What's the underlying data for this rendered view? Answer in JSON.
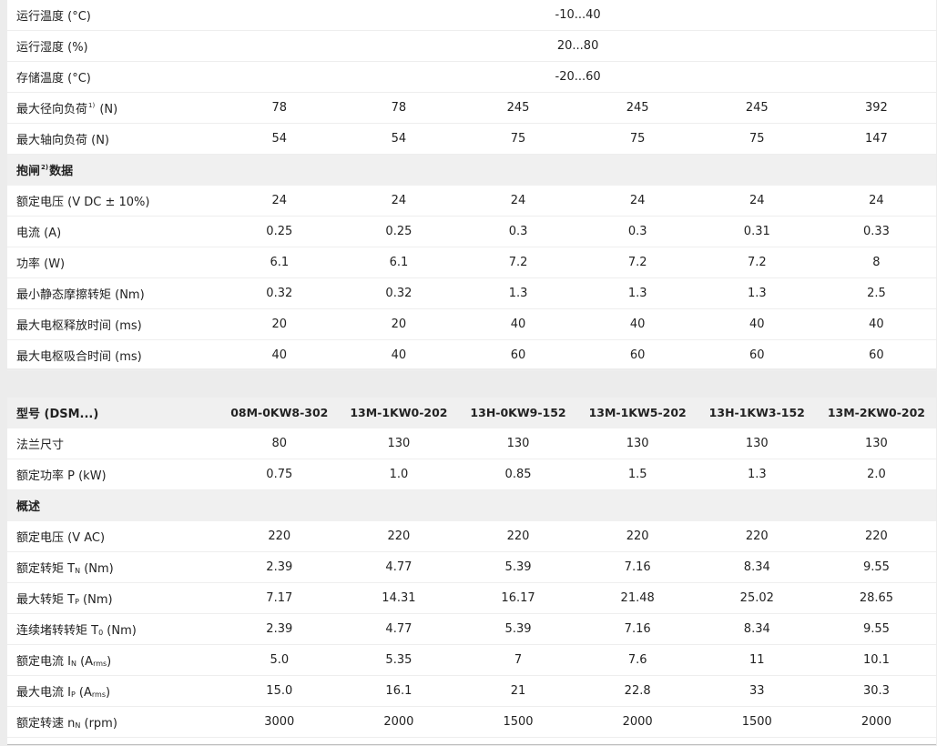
{
  "table1": {
    "env_rows": [
      {
        "label": "运行温度 (°C)",
        "value": "-10...40"
      },
      {
        "label": "运行湿度 (%)",
        "value": "20...80"
      },
      {
        "label": "存储温度 (°C)",
        "value": "-20...60"
      }
    ],
    "load_rows": [
      {
        "label_pre": "最大径向负荷",
        "sup": "1)",
        "label_post": " (N)",
        "values": [
          "78",
          "78",
          "245",
          "245",
          "245",
          "392"
        ]
      },
      {
        "label_pre": "最大轴向负荷 (N)",
        "sup": "",
        "label_post": "",
        "values": [
          "54",
          "54",
          "75",
          "75",
          "75",
          "147"
        ]
      }
    ],
    "brake_section": {
      "pre": "抱闸",
      "sup": "2)",
      "post": "数据"
    },
    "brake_rows": [
      {
        "label": "额定电压 (V DC ± 10%)",
        "values": [
          "24",
          "24",
          "24",
          "24",
          "24",
          "24"
        ]
      },
      {
        "label": "电流 (A)",
        "values": [
          "0.25",
          "0.25",
          "0.3",
          "0.3",
          "0.31",
          "0.33"
        ]
      },
      {
        "label": "功率 (W)",
        "values": [
          "6.1",
          "6.1",
          "7.2",
          "7.2",
          "7.2",
          "8"
        ]
      },
      {
        "label": "最小静态摩擦转矩 (Nm)",
        "values": [
          "0.32",
          "0.32",
          "1.3",
          "1.3",
          "1.3",
          "2.5"
        ]
      },
      {
        "label": "最大电枢释放时间 (ms)",
        "values": [
          "20",
          "20",
          "40",
          "40",
          "40",
          "40"
        ]
      },
      {
        "label": "最大电枢吸合时间 (ms)",
        "values": [
          "40",
          "40",
          "60",
          "60",
          "60",
          "60"
        ]
      }
    ]
  },
  "table2": {
    "header": {
      "label": "型号 (DSM...)",
      "models": [
        "08M-0KW8-302",
        "13M-1KW0-202",
        "13H-0KW9-152",
        "13M-1KW5-202",
        "13H-1KW3-152",
        "13M-2KW0-202"
      ]
    },
    "top_rows": [
      {
        "pre": "法兰尺寸",
        "sub": "",
        "post": "",
        "values": [
          "80",
          "130",
          "130",
          "130",
          "130",
          "130"
        ]
      },
      {
        "pre": "额定功率 P (kW)",
        "sub": "",
        "post": "",
        "values": [
          "0.75",
          "1.0",
          "0.85",
          "1.5",
          "1.3",
          "2.0"
        ]
      }
    ],
    "section_label": "概述",
    "rows": [
      {
        "pre": "额定电压 (V AC)",
        "sub": "",
        "post": "",
        "values": [
          "220",
          "220",
          "220",
          "220",
          "220",
          "220"
        ]
      },
      {
        "pre": "额定转矩 T",
        "sub": "N",
        "post": " (Nm)",
        "values": [
          "2.39",
          "4.77",
          "5.39",
          "7.16",
          "8.34",
          "9.55"
        ]
      },
      {
        "pre": "最大转矩 T",
        "sub": "P",
        "post": " (Nm)",
        "values": [
          "7.17",
          "14.31",
          "16.17",
          "21.48",
          "25.02",
          "28.65"
        ]
      },
      {
        "pre": "连续堵转转矩 T",
        "sub": "0",
        "post": " (Nm)",
        "values": [
          "2.39",
          "4.77",
          "5.39",
          "7.16",
          "8.34",
          "9.55"
        ]
      },
      {
        "pre": "额定电流 I",
        "sub": "N",
        "post": " (A",
        "sub2": "rms",
        "post2": ")",
        "values": [
          "5.0",
          "5.35",
          "7",
          "7.6",
          "11",
          "10.1"
        ]
      },
      {
        "pre": "最大电流 I",
        "sub": "P",
        "post": " (A",
        "sub2": "rms",
        "post2": ")",
        "values": [
          "15.0",
          "16.1",
          "21",
          "22.8",
          "33",
          "30.3"
        ]
      },
      {
        "pre": "额定转速 n",
        "sub": "N",
        "post": " (rpm)",
        "values": [
          "3000",
          "2000",
          "1500",
          "2000",
          "1500",
          "2000"
        ]
      }
    ]
  }
}
